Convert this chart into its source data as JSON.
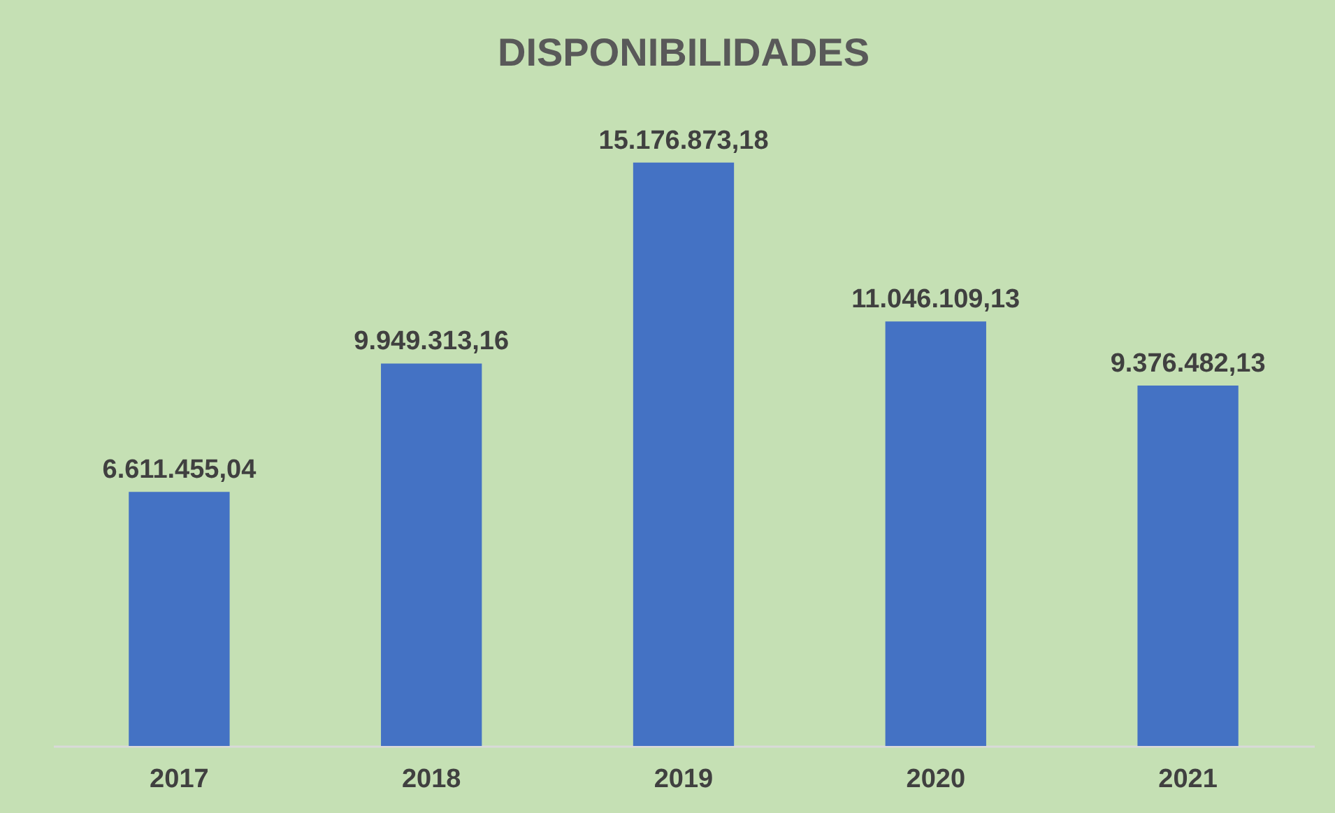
{
  "chart_data": {
    "type": "bar",
    "title": "DISPONIBILIDADES",
    "categories": [
      "2017",
      "2018",
      "2019",
      "2020",
      "2021"
    ],
    "values": [
      6611455.04,
      9949313.16,
      15176873.18,
      11046109.13,
      9376482.13
    ],
    "value_labels": [
      "6.611.455,04",
      "9.949.313,16",
      "15.176.873,18",
      "11.046.109,13",
      "9.376.482,13"
    ],
    "color": "#4472c4",
    "grid": false
  }
}
